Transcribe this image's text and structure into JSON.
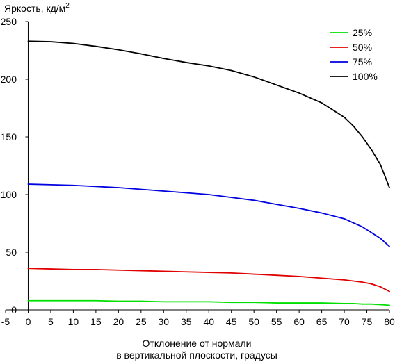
{
  "chart_data": {
    "type": "line",
    "ylabel": "Яркость, кд/м",
    "ylabel_sup": "2",
    "xlabel_line1": "Отклонение от нормали",
    "xlabel_line2": "в вертикальной плоскости, градусы",
    "xlim": [
      -5,
      80
    ],
    "ylim": [
      0,
      250
    ],
    "xticks": [
      -5,
      0,
      5,
      10,
      15,
      20,
      25,
      30,
      35,
      40,
      45,
      50,
      55,
      60,
      65,
      70,
      75,
      80
    ],
    "yticks": [
      0,
      50,
      100,
      150,
      200,
      250
    ],
    "grid": false,
    "legend_position": "top-right",
    "x": [
      0,
      5,
      10,
      15,
      20,
      25,
      30,
      35,
      40,
      45,
      50,
      55,
      60,
      65,
      70,
      72,
      74,
      76,
      78,
      80
    ],
    "series": [
      {
        "name": "25%",
        "color": "#00e000",
        "values": [
          8,
          8,
          8,
          8,
          7.5,
          7.5,
          7,
          7,
          7,
          6.5,
          6.5,
          6,
          6,
          6,
          5.5,
          5.5,
          5,
          5,
          4.5,
          4
        ]
      },
      {
        "name": "50%",
        "color": "#e00000",
        "values": [
          36,
          35.5,
          35,
          35,
          34.5,
          34,
          33.5,
          33,
          32.5,
          32,
          31,
          30,
          29,
          27.5,
          26,
          25,
          24,
          22.5,
          20,
          16
        ]
      },
      {
        "name": "75%",
        "color": "#0000e0",
        "values": [
          109,
          108.5,
          108,
          107,
          106,
          104.5,
          103,
          101.5,
          100,
          97.5,
          95,
          91.5,
          88,
          84,
          79,
          75.5,
          72,
          67,
          62,
          55
        ]
      },
      {
        "name": "100%",
        "color": "#000000",
        "values": [
          233,
          232.5,
          231,
          228.5,
          225.5,
          222,
          218,
          214.5,
          211.5,
          207.5,
          202,
          195,
          188,
          179.5,
          167,
          159.5,
          150,
          139,
          126,
          106
        ]
      }
    ]
  }
}
